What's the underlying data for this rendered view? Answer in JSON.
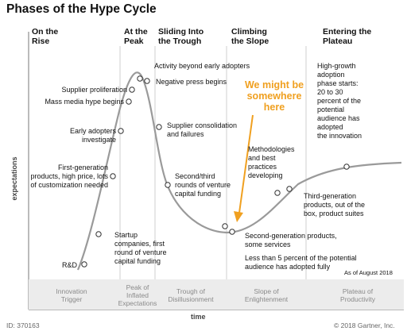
{
  "title": "Phases of the Hype Cycle",
  "phases": {
    "rise": "On the\nRise",
    "peak": "At the\nPeak",
    "trough": "Sliding Into\nthe Trough",
    "slope": "Climbing\nthe Slope",
    "plateau": "Entering the\nPlateau"
  },
  "annotations": {
    "activity": "Activity beyond early adopters",
    "negative_press": "Negative press begins",
    "supplier_prolif": "Supplier proliferation",
    "mass_media": "Mass media hype begins",
    "early_adopters": "Early adopters\ninvestigate",
    "first_gen": "First-generation\nproducts, high price, lots\nof customization needed",
    "rd": "R&D",
    "startup": "Startup\ncompanies, first\nround of venture\ncapital funding",
    "consolidation": "Supplier consolidation\nand failures",
    "second_third": "Second/third\nrounds of venture\ncapital funding",
    "methodologies": "Methodologies\nand best\npractices\ndeveloping",
    "third_gen": "Third-generation\nproducts, out of the\nbox, product suites",
    "second_gen": "Second-generation products,\nsome services",
    "less_than_5": "Less than 5 percent of the potential\naudience has adopted fully",
    "high_growth": "High-growth\nadoption\nphase starts:\n20 to 30\npercent of the\npotential\naudience has\nadopted\nthe innovation"
  },
  "callout": "We might be\nsomewhere\nhere",
  "callout_color": "#f0a020",
  "as_of": "As of August 2018",
  "bottom_phases": {
    "innovation": "Innovation\nTrigger",
    "peak": "Peak of\nInflated\nExpectations",
    "trough": "Trough of\nDisillusionment",
    "slope": "Slope of\nEnlightenment",
    "plateau": "Plateau of\nProductivity"
  },
  "axes": {
    "x": "time",
    "y": "expectations"
  },
  "footer": {
    "id": "ID: 370163",
    "copyright": "© 2018 Gartner, Inc."
  }
}
